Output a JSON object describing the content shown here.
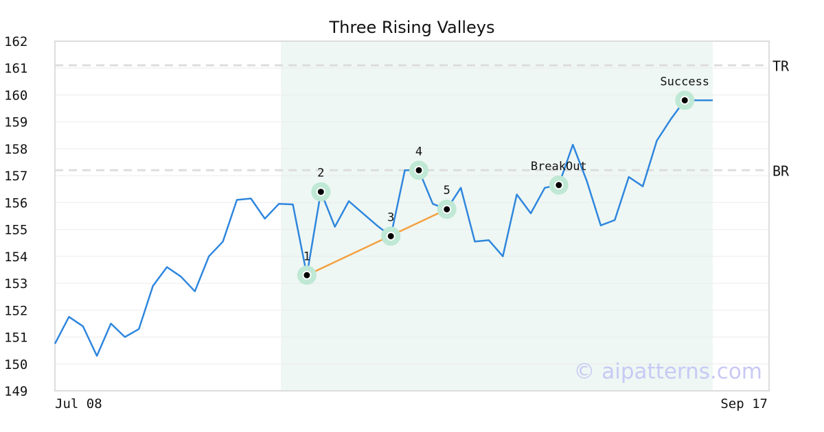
{
  "chart_data": {
    "type": "line",
    "title": "Three Rising Valleys",
    "xlabel": "",
    "ylabel": "",
    "ylim": [
      149,
      162
    ],
    "y_ticks": [
      149,
      150,
      151,
      152,
      153,
      154,
      155,
      156,
      157,
      158,
      159,
      160,
      161,
      162
    ],
    "x_tick_labels": {
      "start": "Jul 08",
      "end": "Sep 17"
    },
    "grid": "horizontal",
    "series": [
      {
        "values": [
          150.75,
          151.75,
          151.4,
          150.3,
          151.5,
          151.0,
          151.3,
          152.9,
          153.6,
          153.25,
          152.7,
          154.0,
          154.55,
          156.1,
          156.15,
          155.4,
          155.95,
          155.93,
          153.3,
          156.4,
          155.1,
          156.05,
          155.6,
          155.15,
          154.75,
          157.2,
          157.2,
          155.95,
          155.75,
          156.55,
          154.55,
          154.6,
          154.0,
          156.3,
          155.6,
          156.55,
          156.65,
          158.15,
          156.8,
          155.15,
          155.35,
          156.95,
          156.6,
          158.3,
          159.1,
          159.8,
          159.8,
          159.8
        ]
      }
    ],
    "highlight_range": {
      "start_index": 16,
      "end_index": 47
    },
    "trendline": {
      "from_index": 18,
      "to_index": 28
    },
    "reference_lines": [
      {
        "label": "TR",
        "y": 161.1
      },
      {
        "label": "BR",
        "y": 157.2
      }
    ],
    "markers": [
      {
        "label": "1",
        "index": 18,
        "y": 153.3
      },
      {
        "label": "2",
        "index": 19,
        "y": 156.4
      },
      {
        "label": "3",
        "index": 24,
        "y": 154.75
      },
      {
        "label": "4",
        "index": 26,
        "y": 157.2
      },
      {
        "label": "5",
        "index": 28,
        "y": 155.75
      },
      {
        "label": "BreakOut",
        "index": 36,
        "y": 156.65
      },
      {
        "label": "Success",
        "index": 45,
        "y": 159.8
      }
    ],
    "watermark": "© aipatterns.com",
    "colors": {
      "line": "#2e86de",
      "trendline": "#f4a040",
      "highlight": "#eef7f3",
      "marker_halo": "#bfe8d5",
      "reference": "#dddddd",
      "grid": "#ebebeb",
      "watermark": "#c9c9f5"
    }
  }
}
